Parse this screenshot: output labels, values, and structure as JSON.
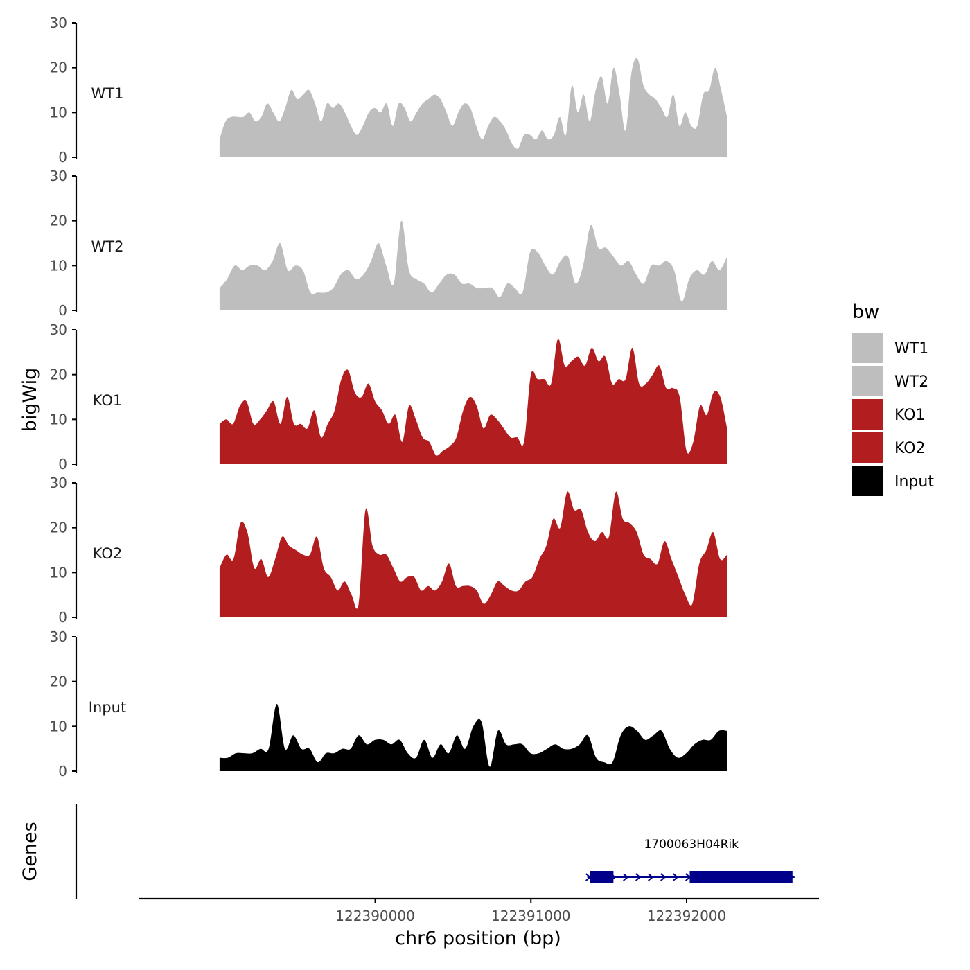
{
  "chart_data": {
    "type": "area",
    "title": "",
    "xlabel": "chr6 position (bp)",
    "ylabel": "bigWig",
    "genes_label": "Genes",
    "xlim": [
      122388480,
      122392850
    ],
    "x_ticks": [
      122390000,
      122391000,
      122392000
    ],
    "ylim": [
      0,
      30
    ],
    "y_ticks": [
      0,
      10,
      20,
      30
    ],
    "legend": {
      "title": "bw",
      "position": "right",
      "entries": [
        {
          "name": "WT1",
          "color": "#bebebe"
        },
        {
          "name": "WT2",
          "color": "#bebebe"
        },
        {
          "name": "KO1",
          "color": "#b21e20"
        },
        {
          "name": "KO2",
          "color": "#b21e20"
        },
        {
          "name": "Input",
          "color": "#000000"
        }
      ]
    },
    "x_start": 122389000,
    "x_end": 122392260,
    "series": [
      {
        "name": "WT1",
        "color": "#bebebe",
        "values": [
          4,
          8,
          9,
          9,
          9,
          10,
          8,
          9,
          12,
          10,
          8,
          11,
          15,
          13,
          14,
          15,
          12,
          8,
          12,
          11,
          12,
          10,
          7,
          5,
          7,
          10,
          11,
          10,
          12,
          7,
          12,
          11,
          8,
          10,
          12,
          13,
          14,
          13,
          10,
          7,
          10,
          12,
          11,
          7,
          4,
          7,
          9,
          8,
          6,
          3,
          2,
          5,
          5,
          4,
          6,
          4,
          5,
          9,
          5,
          16,
          10,
          14,
          8,
          15,
          18,
          12,
          20,
          14,
          6,
          19,
          22,
          16,
          14,
          13,
          11,
          9,
          14,
          7,
          10,
          7,
          7,
          14,
          15,
          20,
          15,
          9
        ]
      },
      {
        "name": "WT2",
        "color": "#bebebe",
        "values": [
          5,
          7,
          10,
          9,
          10,
          10,
          9,
          11,
          15,
          9,
          10,
          9,
          4,
          4,
          4,
          5,
          8,
          9,
          7,
          8,
          11,
          15,
          10,
          6,
          20,
          9,
          7,
          6,
          4,
          6,
          8,
          8,
          6,
          6,
          5,
          5,
          5,
          3,
          6,
          5,
          4,
          13,
          13,
          10,
          8,
          11,
          12,
          6,
          10,
          19,
          14,
          14,
          12,
          10,
          11,
          8,
          6,
          10,
          10,
          11,
          9,
          2,
          7,
          9,
          8,
          11,
          9,
          12
        ]
      },
      {
        "name": "KO1",
        "color": "#b21e20",
        "values": [
          9,
          10,
          9,
          13,
          14,
          9,
          10,
          12,
          14,
          9,
          15,
          9,
          9,
          8,
          12,
          6,
          9,
          12,
          19,
          21,
          16,
          15,
          18,
          14,
          12,
          9,
          11,
          5,
          13,
          10,
          6,
          5,
          2,
          3,
          4,
          6,
          12,
          15,
          13,
          8,
          11,
          10,
          8,
          6,
          6,
          5,
          20,
          19,
          19,
          18,
          28,
          22,
          23,
          24,
          22,
          26,
          23,
          24,
          18,
          19,
          19,
          26,
          18,
          18,
          20,
          22,
          17,
          17,
          15,
          3,
          5,
          13,
          11,
          16,
          15,
          8
        ]
      },
      {
        "name": "KO2",
        "color": "#b21e20",
        "values": [
          11,
          14,
          13,
          21,
          19,
          11,
          13,
          9,
          13,
          18,
          16,
          15,
          14,
          14,
          18,
          11,
          9,
          6,
          8,
          5,
          3,
          24,
          16,
          14,
          14,
          11,
          8,
          9,
          9,
          6,
          7,
          6,
          8,
          12,
          7,
          7,
          7,
          6,
          3,
          5,
          8,
          7,
          6,
          6,
          8,
          9,
          13,
          16,
          22,
          20,
          28,
          24,
          24,
          19,
          17,
          19,
          18,
          28,
          22,
          21,
          19,
          14,
          13,
          12,
          17,
          13,
          9,
          5,
          3,
          12,
          15,
          19,
          13,
          14
        ]
      },
      {
        "name": "Input",
        "color": "#000000",
        "values": [
          3,
          3,
          4,
          4,
          4,
          5,
          5,
          15,
          5,
          8,
          5,
          5,
          2,
          4,
          4,
          5,
          5,
          8,
          6,
          7,
          7,
          6,
          7,
          4,
          3,
          7,
          3,
          6,
          4,
          8,
          5,
          10,
          11,
          1,
          9,
          6,
          6,
          6,
          4,
          4,
          5,
          6,
          5,
          5,
          6,
          8,
          3,
          2,
          2,
          8,
          10,
          9,
          7,
          8,
          9,
          5,
          3,
          4,
          6,
          7,
          7,
          9,
          9
        ]
      }
    ],
    "genes": [
      {
        "name": "1700063H04Rik",
        "strand": "+",
        "start": 122391380,
        "end": 122392680,
        "exons": [
          [
            122391380,
            122391530
          ],
          [
            122392020,
            122392680
          ]
        ]
      }
    ]
  }
}
